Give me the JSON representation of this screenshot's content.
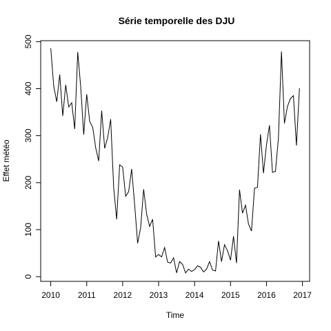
{
  "chart_data": {
    "type": "line",
    "title": "Série temporelle des DJU",
    "xlabel": "Time",
    "ylabel": "Effet météo",
    "xlim": [
      2009.72,
      2017.2
    ],
    "ylim": [
      -10,
      502
    ],
    "x_ticks": [
      2010,
      2011,
      2012,
      2013,
      2014,
      2015,
      2016,
      2017
    ],
    "y_ticks": [
      0,
      100,
      200,
      300,
      400,
      500
    ],
    "x_start": 2010,
    "x_step_months": 1,
    "series": [
      {
        "values": [
          486,
          405,
          372,
          430,
          342,
          408,
          361,
          370,
          314,
          478,
          404,
          302,
          388,
          330,
          318,
          274,
          246,
          353,
          273,
          296,
          335,
          190,
          122,
          238,
          233,
          171,
          181,
          229,
          153,
          71,
          104,
          186,
          133,
          107,
          122,
          42,
          47,
          42,
          62,
          31,
          29,
          40,
          8,
          32,
          26,
          8,
          16,
          11,
          15,
          23,
          20,
          10,
          16,
          32,
          14,
          12,
          76,
          32,
          68,
          55,
          35,
          86,
          29,
          185,
          135,
          152,
          112,
          97,
          188,
          190,
          303,
          220,
          280,
          322,
          222,
          224,
          296,
          479,
          326,
          362,
          379,
          385,
          279,
          401
        ]
      }
    ],
    "grid": false,
    "legend": "none"
  }
}
